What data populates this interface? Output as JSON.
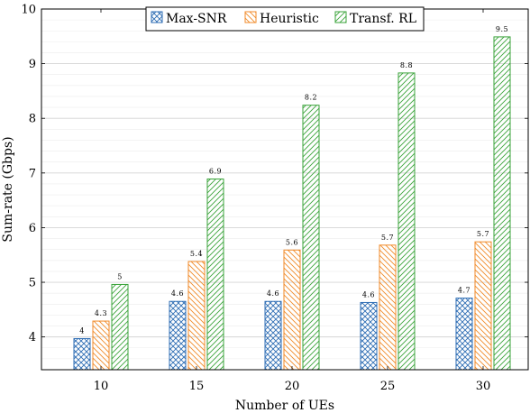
{
  "chart_data": {
    "type": "bar",
    "xlabel": "Number of UEs",
    "ylabel": "Sum-rate (Gbps)",
    "categories": [
      "10",
      "15",
      "20",
      "25",
      "30"
    ],
    "ylim": [
      3.4,
      10
    ],
    "yticks": [
      4,
      5,
      6,
      7,
      8,
      9,
      10
    ],
    "grid": true,
    "legend_position": "top-center",
    "series": [
      {
        "name": "Max-SNR",
        "values": [
          3.97,
          4.65,
          4.65,
          4.63,
          4.71
        ],
        "labels": [
          "4",
          "4.6",
          "4.6",
          "4.6",
          "4.7"
        ],
        "color": "#2e6db4",
        "pattern": "crosshatch"
      },
      {
        "name": "Heuristic",
        "values": [
          4.29,
          5.38,
          5.59,
          5.68,
          5.74
        ],
        "labels": [
          "4.3",
          "5.4",
          "5.6",
          "5.7",
          "5.7"
        ],
        "color": "#f08a28",
        "pattern": "north-west-lines"
      },
      {
        "name": "Transf. RL",
        "values": [
          4.96,
          6.89,
          8.24,
          8.83,
          9.49
        ],
        "labels": [
          "5",
          "6.9",
          "8.2",
          "8.8",
          "9.5"
        ],
        "color": "#3aa33a",
        "pattern": "north-east-lines"
      }
    ]
  }
}
